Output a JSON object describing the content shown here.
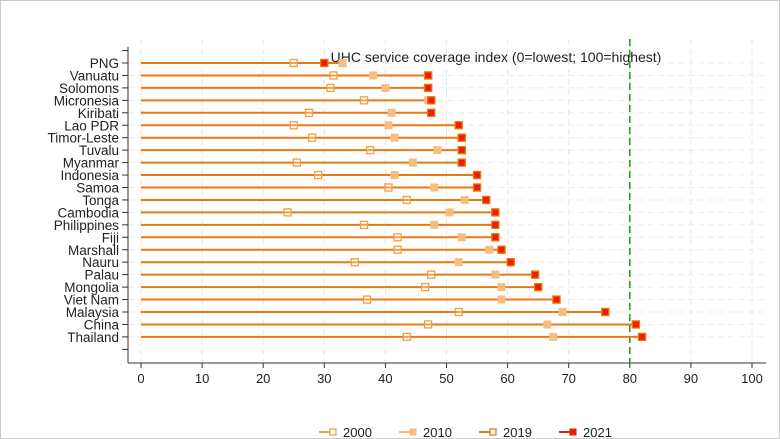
{
  "chart_data": {
    "type": "dumbbell",
    "title": "UHC service coverage index (0=lowest; 100=highest)",
    "xlim": [
      0,
      100
    ],
    "xticks": [
      0,
      10,
      20,
      30,
      40,
      50,
      60,
      70,
      80,
      90,
      100
    ],
    "reference_line": {
      "x": 80,
      "color": "#1a9a1a",
      "style": "dashed"
    },
    "grid": true,
    "legend_position": "bottom",
    "categories": [
      "PNG",
      "Vanuatu",
      "Solomons",
      "Micronesia",
      "Kiribati",
      "Lao PDR",
      "Timor-Leste",
      "Tuvalu",
      "Myanmar",
      "Indonesia",
      "Samoa",
      "Tonga",
      "Cambodia",
      "Philippines",
      "Fiji",
      "Marshall",
      "Nauru",
      "Palau",
      "Mongolia",
      "Viet Nam",
      "Malaysia",
      "China",
      "Thailand"
    ],
    "series": [
      {
        "name": "2000",
        "color": "#f0a040",
        "marker": "hollow-square",
        "values": [
          25,
          31.5,
          31,
          36.5,
          27.5,
          25,
          28,
          37.5,
          25.5,
          29,
          40.5,
          43.5,
          24,
          36.5,
          42,
          42,
          35,
          47.5,
          46.5,
          37,
          52,
          47,
          43.5
        ]
      },
      {
        "name": "2010",
        "color": "#f5be80",
        "marker": "filled-square-light",
        "values": [
          33,
          38,
          40,
          47,
          41,
          40.5,
          41.5,
          48.5,
          44.5,
          41.5,
          48,
          53,
          50.5,
          48,
          52.5,
          57,
          52,
          58,
          59,
          59,
          69,
          66.5,
          67.5
        ]
      },
      {
        "name": "2019",
        "color": "#e87810",
        "marker": "hollow-square",
        "values": [
          30,
          47,
          47,
          47.5,
          47.5,
          52,
          52.5,
          52.5,
          52.5,
          55,
          55,
          56.5,
          58,
          58,
          58,
          59,
          60.5,
          64.5,
          65,
          68,
          76,
          81,
          82
        ]
      },
      {
        "name": "2021",
        "color": "#ee1c00",
        "marker": "filled-square",
        "values": [
          30,
          47,
          47,
          47.5,
          47.5,
          52,
          52.5,
          52.5,
          52.5,
          55,
          55,
          56.5,
          58,
          58,
          58,
          59,
          60.5,
          64.5,
          65,
          68,
          76,
          81,
          82
        ]
      }
    ]
  }
}
